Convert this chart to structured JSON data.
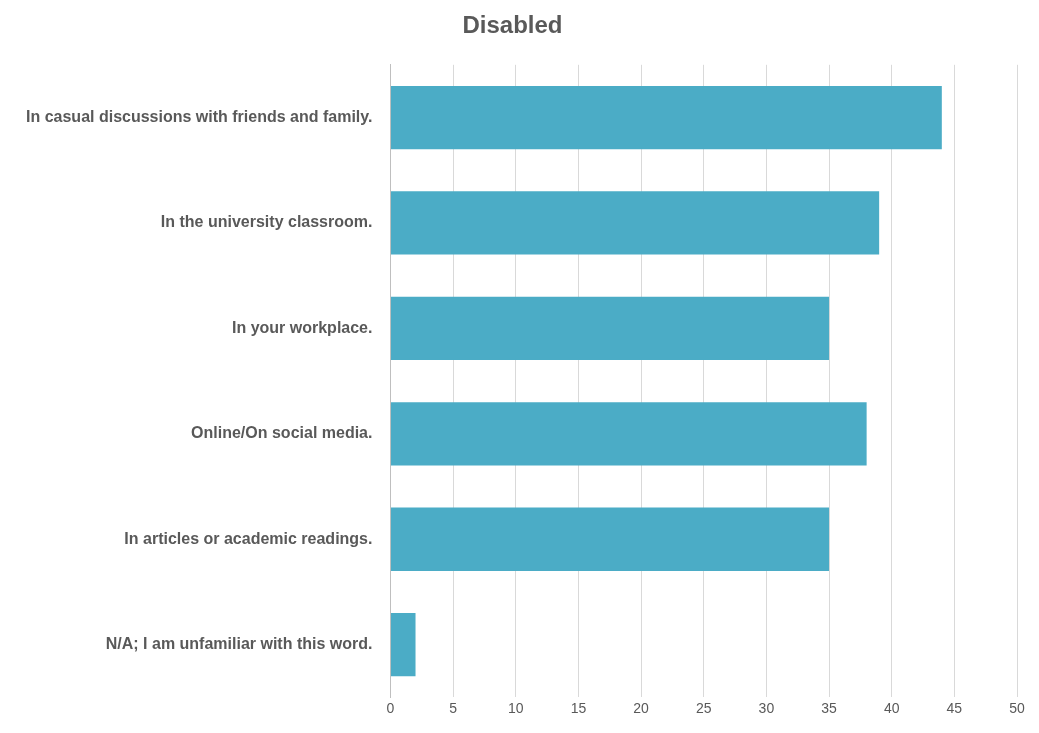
{
  "chart_data": {
    "type": "bar",
    "title": "Disabled",
    "orientation": "horizontal",
    "categories": [
      "In casual discussions with friends and family.",
      "In the university classroom.",
      "In your workplace.",
      "Online/On social media.",
      "In articles or academic readings.",
      "N/A; I am unfamiliar with this word."
    ],
    "values": [
      44,
      39,
      35,
      38,
      35,
      2
    ],
    "color": "#4bacc6",
    "xlim": [
      0,
      50
    ],
    "xticks": [
      0,
      5,
      10,
      15,
      20,
      25,
      30,
      35,
      40,
      45,
      50
    ],
    "grid": "x",
    "legend": false
  }
}
